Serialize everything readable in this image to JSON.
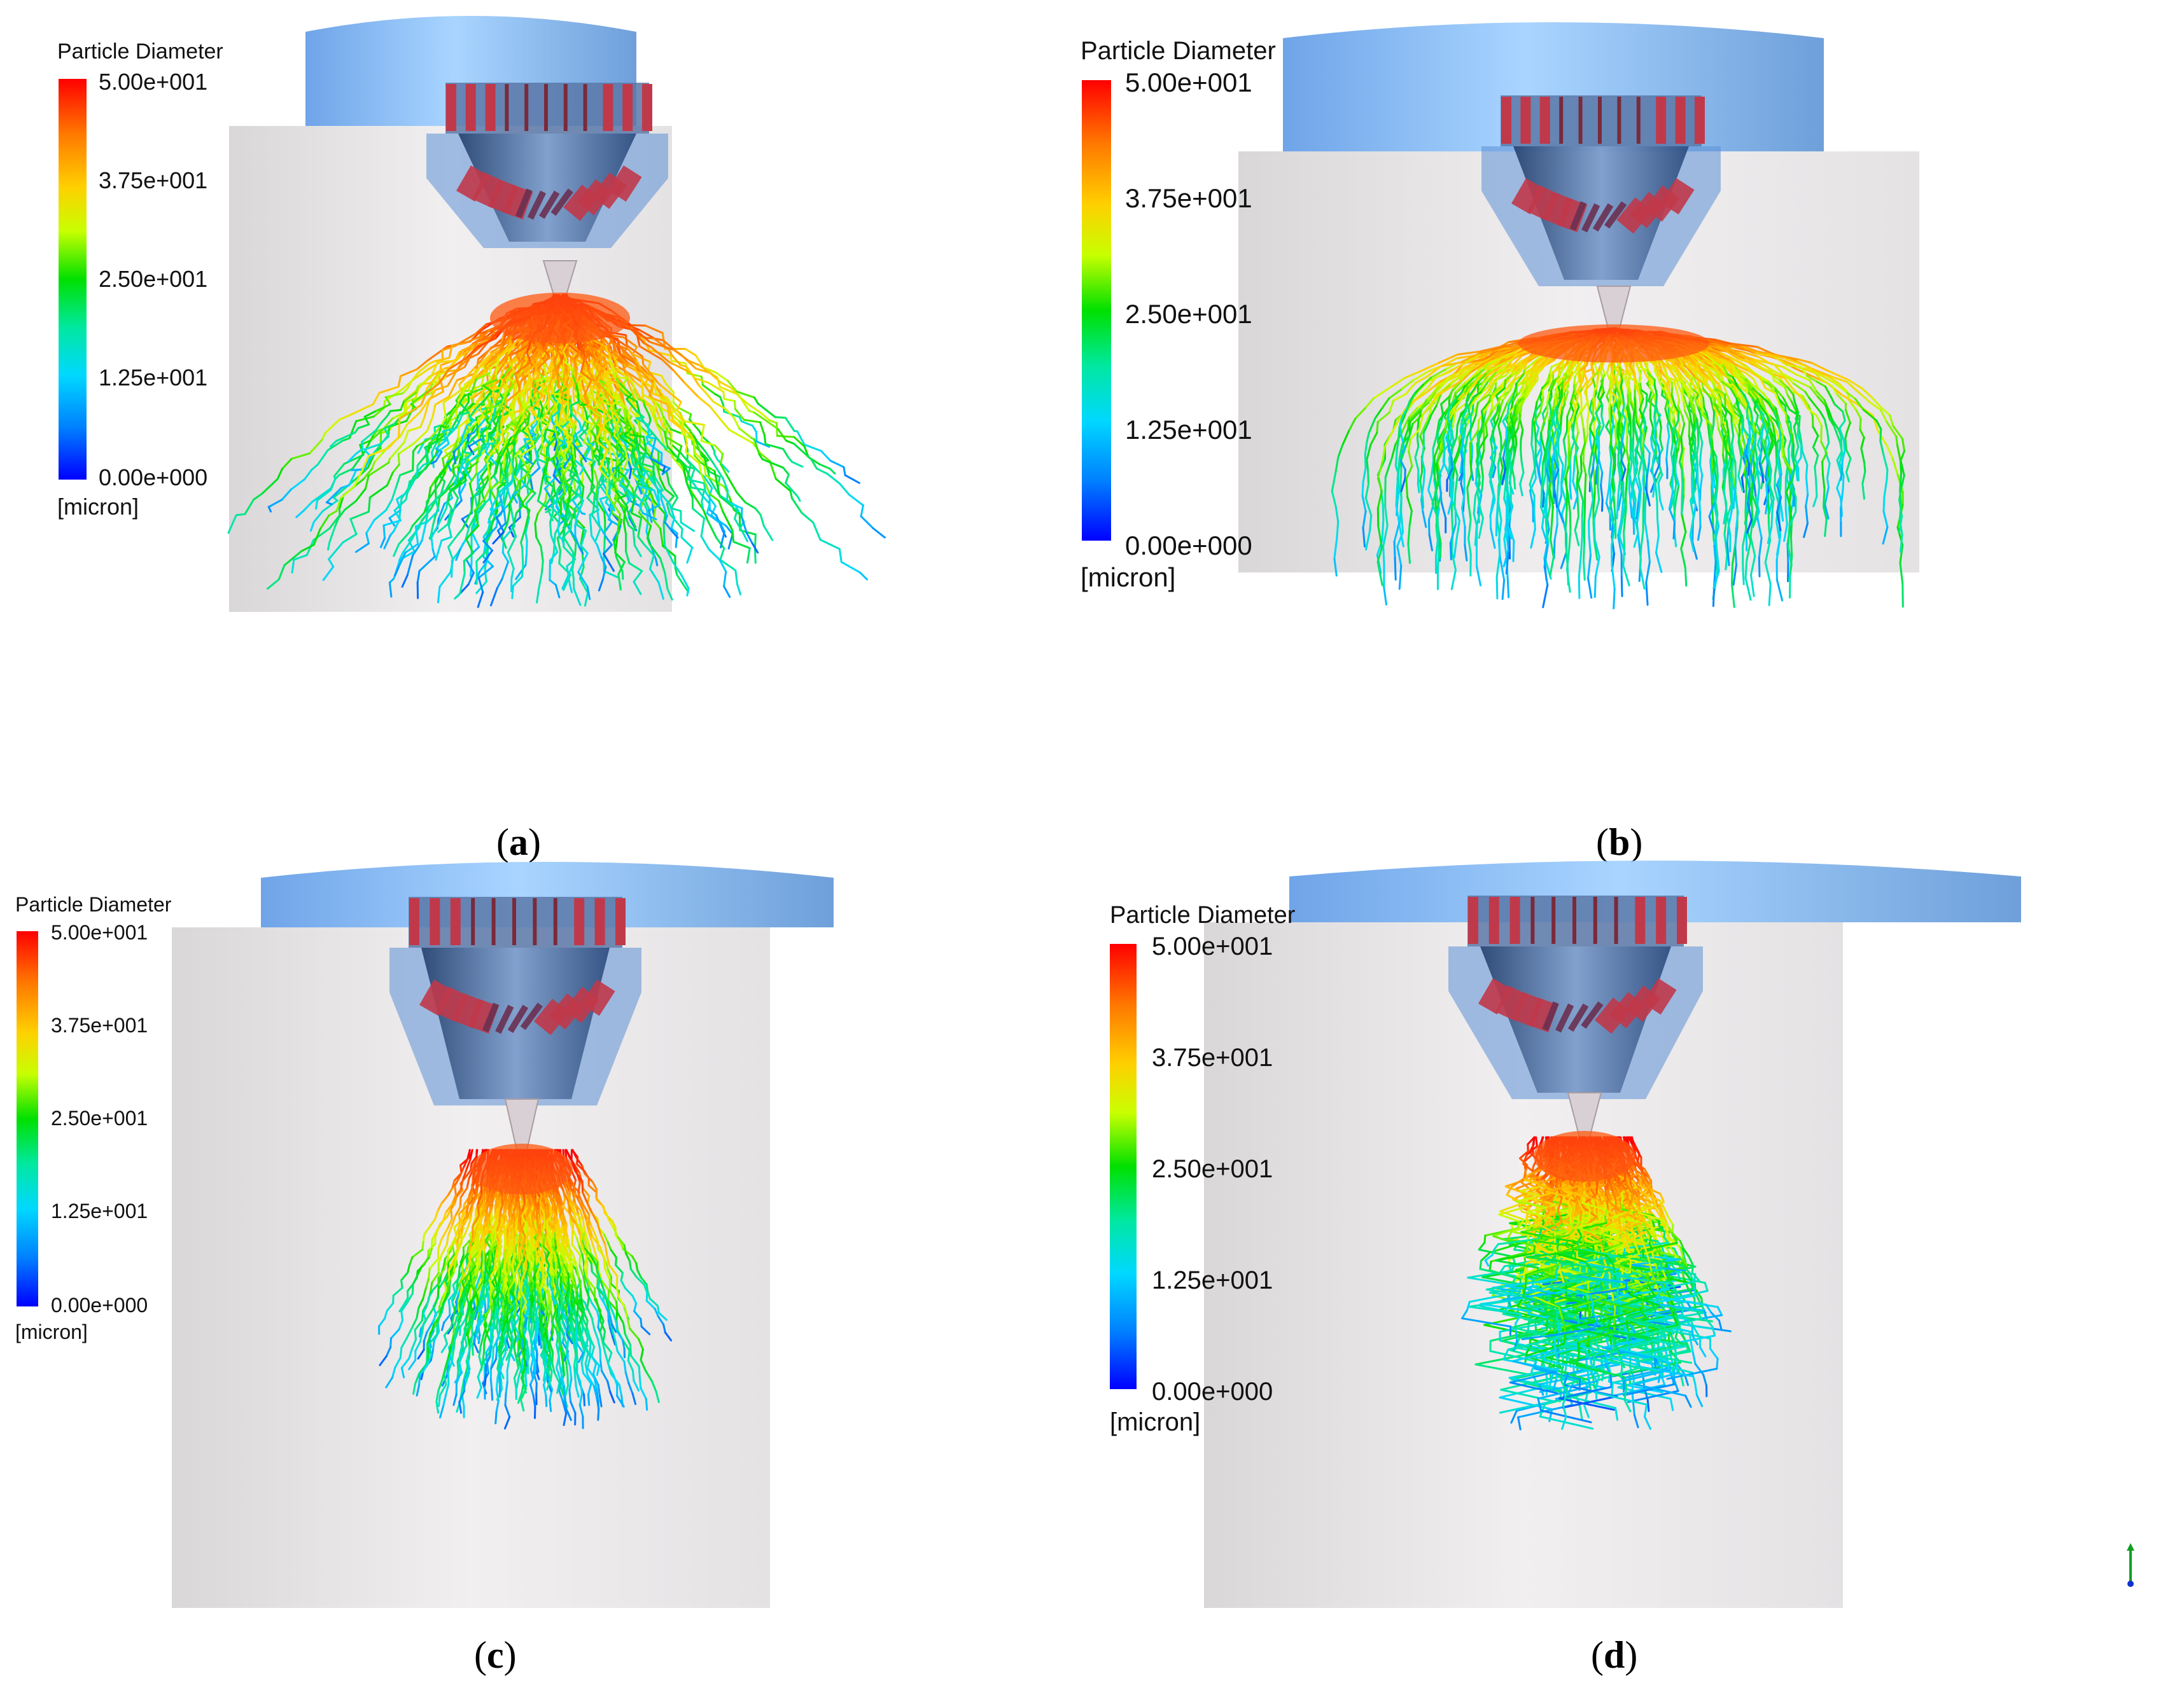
{
  "panels": [
    {
      "id": "a",
      "caption_letter": "a",
      "legend": {
        "title": "Particle Diameter",
        "ticks": [
          "5.00e+001",
          "3.75e+001",
          "2.50e+001",
          "1.25e+001",
          "0.00e+000"
        ],
        "unit": "[micron]"
      },
      "spray": "wide-cone"
    },
    {
      "id": "b",
      "caption_letter": "b",
      "legend": {
        "title": "Particle Diameter",
        "ticks": [
          "5.00e+001",
          "3.75e+001",
          "2.50e+001",
          "1.25e+001",
          "0.00e+000"
        ],
        "unit": "[micron]"
      },
      "spray": "umbrella"
    },
    {
      "id": "c",
      "caption_letter": "c",
      "legend": {
        "title": "Particle Diameter",
        "ticks": [
          "5.00e+001",
          "3.75e+001",
          "2.50e+001",
          "1.25e+001",
          "0.00e+000"
        ],
        "unit": "[micron]"
      },
      "spray": "narrow-plume"
    },
    {
      "id": "d",
      "caption_letter": "d",
      "legend": {
        "title": "Particle Diameter",
        "ticks": [
          "5.00e+001",
          "3.75e+001",
          "2.50e+001",
          "1.25e+001",
          "0.00e+000"
        ],
        "unit": "[micron]"
      },
      "spray": "narrow-plume-tilted"
    }
  ],
  "colors": {
    "background_box": "#e8e6e6",
    "blue_shell": "#6fa8e8",
    "nozzle_body": "#3a5a88",
    "vanes": "#c0394a",
    "colormap_max": "#ff0000",
    "colormap_mid": "#00e000",
    "colormap_min": "#0000ff"
  }
}
